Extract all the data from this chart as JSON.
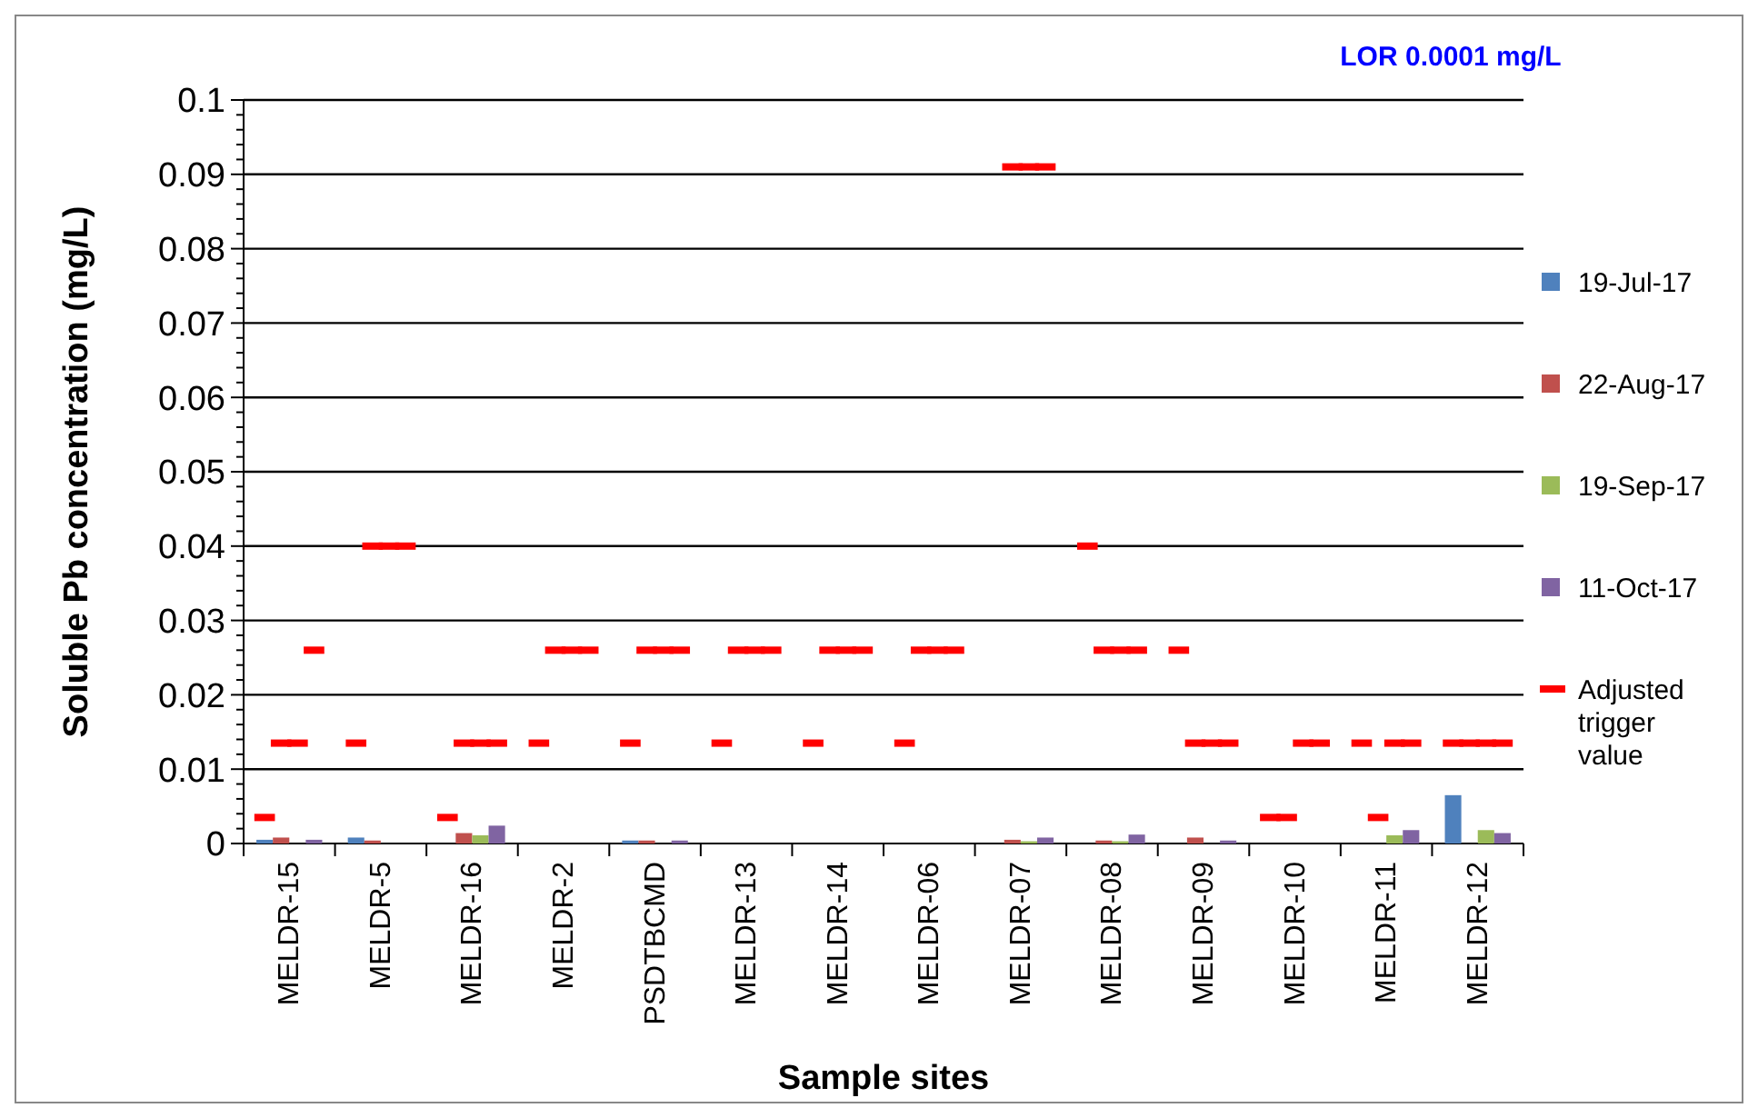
{
  "chart_data": {
    "type": "bar",
    "xlabel": "Sample sites",
    "ylabel": "Soluble Pb concentration (mg/L)",
    "annotations": [
      "LOR 0.0001 mg/L"
    ],
    "categories": [
      "MELDR-15",
      "MELDR-5",
      "MELDR-16",
      "MELDR-2",
      "PSDTBCMD",
      "MELDR-13",
      "MELDR-14",
      "MELDR-06",
      "MELDR-07",
      "MELDR-08",
      "MELDR-09",
      "MELDR-10",
      "MELDR-11",
      "MELDR-12"
    ],
    "ylim": [
      0,
      0.1
    ],
    "yticks": [
      0,
      {
        "value": 0.002,
        "label": null
      },
      {
        "value": 0.004,
        "label": null
      },
      {
        "value": 0.006,
        "label": null
      },
      {
        "value": 0.008,
        "label": null
      },
      0.01,
      {
        "value": 0.012,
        "label": null
      },
      {
        "value": 0.014,
        "label": null
      },
      {
        "value": 0.016,
        "label": null
      },
      {
        "value": 0.018,
        "label": null
      },
      0.02,
      {
        "value": 0.022,
        "label": null
      },
      {
        "value": 0.024,
        "label": null
      },
      {
        "value": 0.026,
        "label": null
      },
      {
        "value": 0.028,
        "label": null
      },
      0.03,
      {
        "value": 0.032,
        "label": null
      },
      {
        "value": 0.034,
        "label": null
      },
      {
        "value": 0.036,
        "label": null
      },
      {
        "value": 0.038,
        "label": null
      },
      0.04,
      {
        "value": 0.042,
        "label": null
      },
      {
        "value": 0.044,
        "label": null
      },
      {
        "value": 0.046,
        "label": null
      },
      {
        "value": 0.048,
        "label": null
      },
      0.05,
      {
        "value": 0.052,
        "label": null
      },
      {
        "value": 0.054,
        "label": null
      },
      {
        "value": 0.056,
        "label": null
      },
      {
        "value": 0.058,
        "label": null
      },
      0.06,
      {
        "value": 0.062,
        "label": null
      },
      {
        "value": 0.064,
        "label": null
      },
      {
        "value": 0.066,
        "label": null
      },
      {
        "value": 0.068,
        "label": null
      },
      0.07,
      {
        "value": 0.072,
        "label": null
      },
      {
        "value": 0.074,
        "label": null
      },
      {
        "value": 0.076,
        "label": null
      },
      {
        "value": 0.078,
        "label": null
      },
      0.08,
      {
        "value": 0.082,
        "label": null
      },
      {
        "value": 0.084,
        "label": null
      },
      {
        "value": 0.086,
        "label": null
      },
      {
        "value": 0.088,
        "label": null
      },
      0.09,
      {
        "value": 0.092,
        "label": null
      },
      {
        "value": 0.094,
        "label": null
      },
      {
        "value": 0.096,
        "label": null
      },
      {
        "value": 0.098,
        "label": null
      },
      0.1
    ],
    "grid": "y",
    "legend": "right",
    "series": [
      {
        "name": "19-Jul-17",
        "color": "#4f81bd",
        "values": [
          0.0005,
          0.0008,
          null,
          null,
          0.0004,
          null,
          null,
          null,
          null,
          null,
          null,
          null,
          null,
          0.0065
        ]
      },
      {
        "name": "22-Aug-17",
        "color": "#c0504d",
        "values": [
          0.0008,
          0.0004,
          0.0014,
          null,
          0.0004,
          null,
          null,
          null,
          0.0005,
          0.0004,
          0.0008,
          null,
          null,
          null
        ]
      },
      {
        "name": "19-Sep-17",
        "color": "#9bbb59",
        "values": [
          null,
          null,
          0.0011,
          null,
          null,
          null,
          null,
          null,
          0.0003,
          0.0003,
          null,
          null,
          0.0011,
          0.0018
        ]
      },
      {
        "name": "11-Oct-17",
        "color": "#8064a2",
        "values": [
          0.0005,
          null,
          0.0024,
          null,
          0.0004,
          null,
          null,
          null,
          0.0008,
          0.0012,
          0.0004,
          null,
          0.0018,
          0.0014
        ]
      },
      {
        "name": "Adjusted trigger value",
        "type": "scatter",
        "color": "#ff0000",
        "x": [
          "MELDR-15",
          "MELDR-15",
          "MELDR-15",
          "MELDR-15",
          "MELDR-5",
          "MELDR-5",
          "MELDR-5",
          "MELDR-5",
          "MELDR-16",
          "MELDR-16",
          "MELDR-16",
          "MELDR-16",
          "MELDR-2",
          "MELDR-2",
          "MELDR-2",
          "MELDR-2",
          "PSDTBCMD",
          "PSDTBCMD",
          "PSDTBCMD",
          "PSDTBCMD",
          "MELDR-13",
          "MELDR-13",
          "MELDR-13",
          "MELDR-13",
          "MELDR-14",
          "MELDR-14",
          "MELDR-14",
          "MELDR-14",
          "MELDR-06",
          "MELDR-06",
          "MELDR-06",
          "MELDR-06",
          "MELDR-07",
          "MELDR-07",
          "MELDR-07",
          "MELDR-07",
          "MELDR-08",
          "MELDR-08",
          "MELDR-08",
          "MELDR-08",
          "MELDR-09",
          "MELDR-09",
          "MELDR-09",
          "MELDR-09",
          "MELDR-10",
          "MELDR-10",
          "MELDR-10",
          "MELDR-10",
          "MELDR-11",
          "MELDR-11",
          "MELDR-11",
          "MELDR-11",
          "MELDR-12",
          "MELDR-12",
          "MELDR-12",
          "MELDR-12"
        ],
        "values": [
          0.0035,
          0.0135,
          0.0135,
          0.026,
          0.0135,
          0.04,
          0.04,
          0.04,
          0.0035,
          0.0135,
          0.0135,
          0.0135,
          0.0135,
          0.026,
          0.026,
          0.026,
          0.0135,
          0.026,
          0.026,
          0.026,
          0.0135,
          0.026,
          0.026,
          0.026,
          0.0135,
          0.026,
          0.026,
          0.026,
          0.0135,
          0.026,
          0.026,
          0.026,
          null,
          0.091,
          0.091,
          0.091,
          0.04,
          0.026,
          0.026,
          0.026,
          0.026,
          0.0135,
          0.0135,
          0.0135,
          0.0035,
          0.0035,
          0.0135,
          0.0135,
          0.0135,
          0.0035,
          0.0135,
          0.0135,
          0.0135,
          0.0135,
          0.0135,
          0.0135
        ]
      }
    ]
  }
}
